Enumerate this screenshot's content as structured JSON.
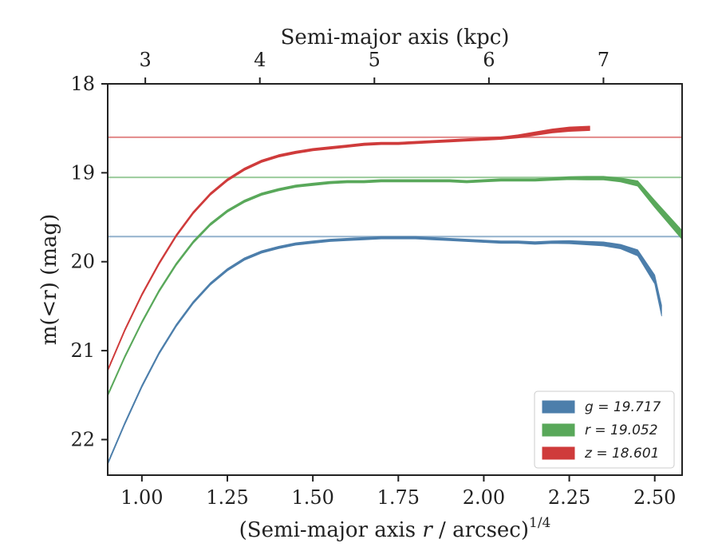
{
  "chart_data": {
    "type": "line",
    "xlabel": "(Semi-major axis r / arcsec)^1/4",
    "xlabel_prefix": "(Semi-major axis ",
    "xlabel_var": "r",
    "xlabel_suffix": " / arcsec)",
    "xlabel_sup": "1/4",
    "ylabel": "m(<r) (mag)",
    "top_xlabel": "Semi-major axis (kpc)",
    "xlim": [
      0.9,
      2.58
    ],
    "ylim": [
      22.4,
      18.0
    ],
    "x_ticks": [
      "1.00",
      "1.25",
      "1.50",
      "1.75",
      "2.00",
      "2.25",
      "2.50"
    ],
    "x_tick_values": [
      1.0,
      1.25,
      1.5,
      1.75,
      2.0,
      2.25,
      2.5
    ],
    "y_ticks": [
      "18",
      "19",
      "20",
      "21",
      "22"
    ],
    "y_tick_values": [
      18,
      19,
      20,
      21,
      22
    ],
    "top_ticks": [
      "3",
      "4",
      "5",
      "6",
      "7"
    ],
    "top_tick_positions_x": [
      1.01,
      1.345,
      1.68,
      2.015,
      2.35
    ],
    "legend_position": "lower-right",
    "series": [
      {
        "name": "g = 19.717",
        "legend_var": "g",
        "legend_value": "19.717",
        "color": "#4c7eab",
        "asymptote": 19.717,
        "x": [
          0.9,
          0.95,
          1.0,
          1.05,
          1.1,
          1.15,
          1.2,
          1.25,
          1.3,
          1.35,
          1.4,
          1.45,
          1.5,
          1.55,
          1.6,
          1.65,
          1.7,
          1.75,
          1.8,
          1.85,
          1.9,
          1.95,
          2.0,
          2.05,
          2.1,
          2.15,
          2.2,
          2.25,
          2.3,
          2.35,
          2.4,
          2.45,
          2.5,
          2.52
        ],
        "y": [
          22.27,
          21.82,
          21.4,
          21.03,
          20.72,
          20.46,
          20.25,
          20.09,
          19.97,
          19.89,
          19.84,
          19.8,
          19.78,
          19.76,
          19.75,
          19.74,
          19.73,
          19.73,
          19.73,
          19.74,
          19.75,
          19.76,
          19.77,
          19.78,
          19.78,
          19.79,
          19.78,
          19.78,
          19.79,
          19.8,
          19.83,
          19.9,
          20.2,
          20.55
        ],
        "width": [
          0.01,
          0.01,
          0.01,
          0.01,
          0.01,
          0.01,
          0.01,
          0.01,
          0.01,
          0.01,
          0.01,
          0.01,
          0.01,
          0.01,
          0.01,
          0.01,
          0.01,
          0.01,
          0.015,
          0.015,
          0.02,
          0.02,
          0.02,
          0.025,
          0.025,
          0.03,
          0.03,
          0.035,
          0.04,
          0.045,
          0.05,
          0.07,
          0.1,
          0.12
        ]
      },
      {
        "name": "r = 19.052",
        "legend_var": "r",
        "legend_value": "19.052",
        "color": "#59a85a",
        "asymptote": 19.052,
        "x": [
          0.9,
          0.95,
          1.0,
          1.05,
          1.1,
          1.15,
          1.2,
          1.25,
          1.3,
          1.35,
          1.4,
          1.45,
          1.5,
          1.55,
          1.6,
          1.65,
          1.7,
          1.75,
          1.8,
          1.85,
          1.9,
          1.95,
          2.0,
          2.05,
          2.1,
          2.15,
          2.2,
          2.25,
          2.3,
          2.35,
          2.4,
          2.45,
          2.5,
          2.58
        ],
        "y": [
          21.5,
          21.07,
          20.68,
          20.33,
          20.03,
          19.78,
          19.58,
          19.43,
          19.32,
          19.24,
          19.19,
          19.15,
          19.13,
          19.11,
          19.1,
          19.1,
          19.09,
          19.09,
          19.09,
          19.09,
          19.09,
          19.1,
          19.09,
          19.08,
          19.08,
          19.08,
          19.07,
          19.06,
          19.06,
          19.06,
          19.08,
          19.12,
          19.35,
          19.7
        ],
        "width": [
          0.01,
          0.01,
          0.01,
          0.01,
          0.01,
          0.01,
          0.01,
          0.01,
          0.01,
          0.01,
          0.01,
          0.01,
          0.01,
          0.01,
          0.01,
          0.01,
          0.01,
          0.01,
          0.012,
          0.012,
          0.015,
          0.015,
          0.02,
          0.02,
          0.025,
          0.025,
          0.03,
          0.035,
          0.04,
          0.04,
          0.045,
          0.06,
          0.08,
          0.1
        ]
      },
      {
        "name": "z = 18.601",
        "legend_var": "z",
        "legend_value": "18.601",
        "color": "#cf3b3b",
        "asymptote": 18.601,
        "x": [
          0.9,
          0.95,
          1.0,
          1.05,
          1.1,
          1.15,
          1.2,
          1.25,
          1.3,
          1.35,
          1.4,
          1.45,
          1.5,
          1.55,
          1.6,
          1.65,
          1.7,
          1.75,
          1.8,
          1.85,
          1.9,
          1.95,
          2.0,
          2.05,
          2.1,
          2.15,
          2.2,
          2.25,
          2.31
        ],
        "y": [
          21.22,
          20.77,
          20.37,
          20.02,
          19.71,
          19.45,
          19.24,
          19.08,
          18.96,
          18.87,
          18.81,
          18.77,
          18.74,
          18.72,
          18.7,
          18.68,
          18.67,
          18.67,
          18.66,
          18.65,
          18.64,
          18.63,
          18.62,
          18.61,
          18.59,
          18.56,
          18.53,
          18.51,
          18.5
        ],
        "width": [
          0.01,
          0.01,
          0.01,
          0.01,
          0.01,
          0.01,
          0.01,
          0.01,
          0.01,
          0.01,
          0.01,
          0.01,
          0.01,
          0.01,
          0.012,
          0.012,
          0.015,
          0.015,
          0.02,
          0.02,
          0.025,
          0.025,
          0.03,
          0.03,
          0.035,
          0.04,
          0.045,
          0.05,
          0.05
        ]
      }
    ]
  }
}
